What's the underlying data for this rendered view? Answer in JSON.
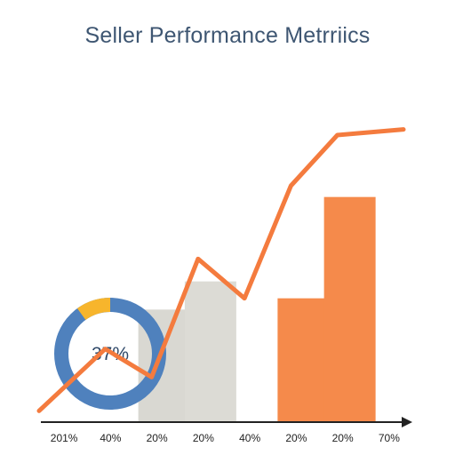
{
  "title": "Seller Performance Metrriics",
  "chart_data": {
    "type": "bar",
    "categories": [
      "201%",
      "40%",
      "20%",
      "20%",
      "40%",
      "20%",
      "20%",
      "70%"
    ],
    "bar_values": [
      null,
      null,
      20,
      25,
      null,
      22,
      40,
      null
    ],
    "bar_colors": [
      "",
      "",
      "#d9d8d2",
      "#dcdbd5",
      "",
      "#f58a4b",
      "#f58a4b",
      ""
    ],
    "line": {
      "color": "#f47b3e",
      "values": [
        2,
        13,
        8,
        29,
        22,
        42,
        51,
        52
      ]
    },
    "donut": {
      "label": "37%",
      "highlight_fraction": 0.1,
      "main_color": "#4f81bd",
      "highlight_color": "#f7b52c"
    },
    "ylim": [
      0,
      60
    ],
    "grid": false,
    "xlabel": "",
    "ylabel": ""
  }
}
